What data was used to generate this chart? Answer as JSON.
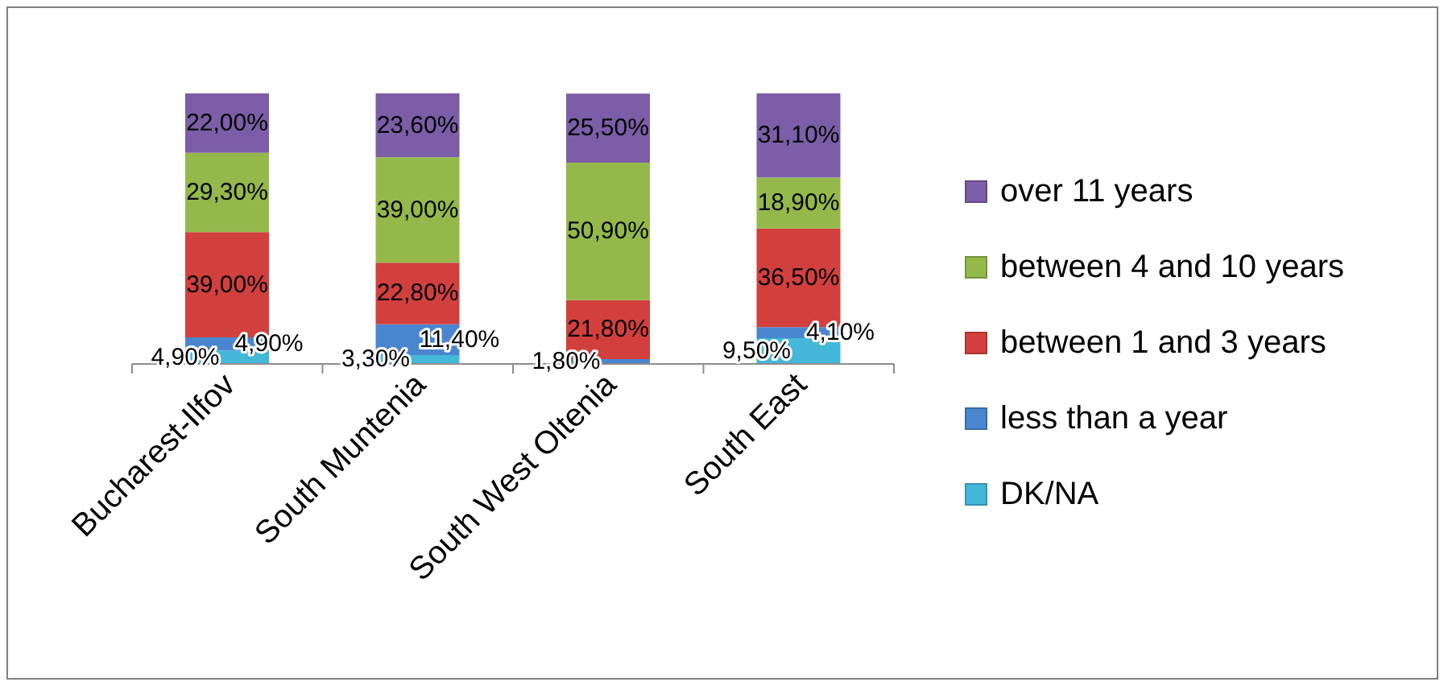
{
  "chart_data": {
    "type": "bar",
    "stacked": true,
    "tick_labels": "x",
    "legend": "right",
    "categories": [
      "Bucharest-Ilfov",
      "South Muntenia",
      "South West Oltenia",
      "South East"
    ],
    "series": [
      {
        "name": "DK/NA",
        "color": "#43b8d8",
        "values": [
          4.9,
          3.3,
          null,
          9.5
        ],
        "value_labels": [
          "4,90%",
          "3,30%",
          null,
          "9,50%"
        ]
      },
      {
        "name": "less than a year",
        "color": "#4a86d0",
        "values": [
          4.9,
          11.4,
          1.8,
          4.1
        ],
        "value_labels": [
          "4,90%",
          "11,40%",
          "1,80%",
          "4,10%"
        ]
      },
      {
        "name": "between 1 and 3 years",
        "color": "#d2403d",
        "values": [
          39.0,
          22.8,
          21.8,
          36.5
        ],
        "value_labels": [
          "39,00%",
          "22,80%",
          "21,80%",
          "36,50%"
        ]
      },
      {
        "name": "between 4 and 10 years",
        "color": "#94b94a",
        "values": [
          29.3,
          39.0,
          50.9,
          18.9
        ],
        "value_labels": [
          "29,30%",
          "39,00%",
          "50,90%",
          "18,90%"
        ]
      },
      {
        "name": "over 11 years",
        "color": "#7b5ea7",
        "values": [
          22.0,
          23.6,
          25.5,
          31.1
        ],
        "value_labels": [
          "22,00%",
          "23,60%",
          "25,50%",
          "31,10%"
        ]
      }
    ]
  }
}
